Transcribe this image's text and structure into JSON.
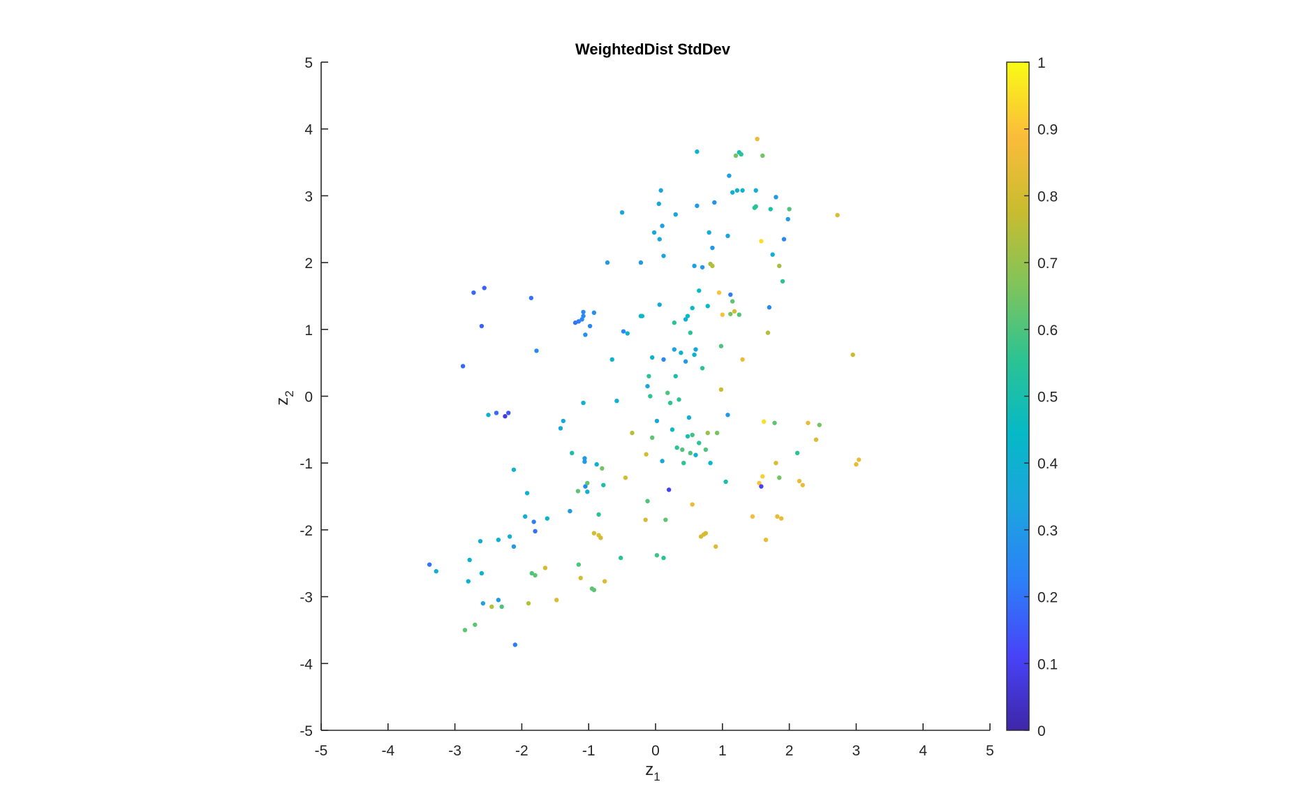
{
  "chart_data": {
    "type": "scatter",
    "title": "WeightedDist StdDev",
    "xlabel": {
      "base": "z",
      "sub": "1"
    },
    "ylabel": {
      "base": "z",
      "sub": "2"
    },
    "xlim": [
      -5,
      5
    ],
    "ylim": [
      -5,
      5
    ],
    "xticks": [
      "-5",
      "-4",
      "-3",
      "-2",
      "-1",
      "0",
      "1",
      "2",
      "3",
      "4",
      "5"
    ],
    "yticks": [
      "-5",
      "-4",
      "-3",
      "-2",
      "-1",
      "0",
      "1",
      "2",
      "3",
      "4",
      "5"
    ],
    "grid": false,
    "colorbar": {
      "colormap": "parula",
      "range": [
        0,
        1
      ],
      "ticks": [
        "0",
        "0.1",
        "0.2",
        "0.3",
        "0.4",
        "0.5",
        "0.6",
        "0.7",
        "0.8",
        "0.9",
        "1"
      ],
      "stops": [
        "#3e26a8",
        "#4743f8",
        "#2d7ff8",
        "#1ca4df",
        "#06b9c6",
        "#2cc393",
        "#80c45a",
        "#c9bc2f",
        "#fbbc3b",
        "#f9fb15"
      ]
    },
    "points": [
      [
        -3.38,
        -2.52,
        0.2
      ],
      [
        -3.28,
        -2.62,
        0.38
      ],
      [
        -2.88,
        0.45,
        0.18
      ],
      [
        -2.85,
        -3.5,
        0.62
      ],
      [
        -2.8,
        -2.77,
        0.4
      ],
      [
        -2.78,
        -2.45,
        0.42
      ],
      [
        -2.72,
        1.55,
        0.18
      ],
      [
        -2.7,
        -3.42,
        0.62
      ],
      [
        -2.62,
        -2.17,
        0.38
      ],
      [
        -2.6,
        1.05,
        0.17
      ],
      [
        -2.6,
        -2.65,
        0.42
      ],
      [
        -2.58,
        -3.1,
        0.32
      ],
      [
        -2.56,
        1.62,
        0.17
      ],
      [
        -2.5,
        -0.28,
        0.4
      ],
      [
        -2.45,
        -3.15,
        0.75
      ],
      [
        -2.38,
        -0.25,
        0.18
      ],
      [
        -2.35,
        -2.15,
        0.42
      ],
      [
        -2.35,
        -3.05,
        0.3
      ],
      [
        -2.3,
        -3.15,
        0.6
      ],
      [
        -2.25,
        -0.3,
        0.08
      ],
      [
        -2.2,
        -0.25,
        0.15
      ],
      [
        -2.18,
        -2.1,
        0.4
      ],
      [
        -2.12,
        -1.1,
        0.4
      ],
      [
        -2.12,
        -2.25,
        0.3
      ],
      [
        -2.1,
        -3.72,
        0.22
      ],
      [
        -1.95,
        -1.8,
        0.38
      ],
      [
        -1.92,
        -1.45,
        0.4
      ],
      [
        -1.9,
        -3.1,
        0.75
      ],
      [
        -1.86,
        1.47,
        0.2
      ],
      [
        -1.85,
        -2.65,
        0.6
      ],
      [
        -1.82,
        -1.88,
        0.22
      ],
      [
        -1.8,
        -2.02,
        0.2
      ],
      [
        -1.8,
        -2.68,
        0.62
      ],
      [
        -1.78,
        0.68,
        0.25
      ],
      [
        -1.62,
        -1.83,
        0.42
      ],
      [
        -1.65,
        -2.57,
        0.8
      ],
      [
        -1.48,
        -3.05,
        0.82
      ],
      [
        -1.42,
        -0.48,
        0.35
      ],
      [
        -1.38,
        -0.37,
        0.35
      ],
      [
        -1.28,
        -1.72,
        0.3
      ],
      [
        -1.25,
        -0.85,
        0.5
      ],
      [
        -1.2,
        1.1,
        0.2
      ],
      [
        -1.16,
        -1.42,
        0.62
      ],
      [
        -1.15,
        1.12,
        0.22
      ],
      [
        -1.15,
        -2.52,
        0.6
      ],
      [
        -1.12,
        -2.72,
        0.8
      ],
      [
        -1.1,
        1.15,
        0.25
      ],
      [
        -1.08,
        1.2,
        0.25
      ],
      [
        -1.08,
        1.26,
        0.25
      ],
      [
        -1.08,
        -0.1,
        0.4
      ],
      [
        -1.06,
        -0.93,
        0.3
      ],
      [
        -1.06,
        -0.98,
        0.3
      ],
      [
        -1.05,
        -1.35,
        0.25
      ],
      [
        -1.05,
        0.92,
        0.28
      ],
      [
        -1.02,
        -1.43,
        0.4
      ],
      [
        -1.02,
        -1.3,
        0.62
      ],
      [
        -0.98,
        1.05,
        0.25
      ],
      [
        -0.95,
        -2.88,
        0.62
      ],
      [
        -0.92,
        -2.9,
        0.62
      ],
      [
        -0.92,
        -2.05,
        0.8
      ],
      [
        -0.92,
        1.25,
        0.28
      ],
      [
        -0.88,
        -1.02,
        0.4
      ],
      [
        -0.85,
        -1.77,
        0.55
      ],
      [
        -0.85,
        -2.08,
        0.82
      ],
      [
        -0.82,
        -2.12,
        0.8
      ],
      [
        -0.8,
        -1.08,
        0.65
      ],
      [
        -0.78,
        -1.33,
        0.5
      ],
      [
        -0.76,
        -2.77,
        0.82
      ],
      [
        -0.72,
        2.0,
        0.3
      ],
      [
        -0.65,
        0.55,
        0.4
      ],
      [
        -0.58,
        -0.07,
        0.4
      ],
      [
        -0.52,
        -2.42,
        0.55
      ],
      [
        -0.5,
        2.75,
        0.35
      ],
      [
        -0.48,
        0.97,
        0.25
      ],
      [
        -0.45,
        -1.22,
        0.8
      ],
      [
        -0.42,
        0.94,
        0.4
      ],
      [
        -0.35,
        -0.55,
        0.75
      ],
      [
        -0.22,
        1.2,
        0.42
      ],
      [
        -0.2,
        1.2,
        0.45
      ],
      [
        -0.22,
        2.0,
        0.3
      ],
      [
        -0.15,
        -1.85,
        0.8
      ],
      [
        -0.14,
        -0.87,
        0.8
      ],
      [
        -0.12,
        -1.57,
        0.6
      ],
      [
        -0.12,
        0.15,
        0.35
      ],
      [
        -0.1,
        0.3,
        0.55
      ],
      [
        -0.08,
        0.0,
        0.55
      ],
      [
        -0.05,
        0.58,
        0.4
      ],
      [
        -0.05,
        -0.62,
        0.62
      ],
      [
        -0.02,
        2.45,
        0.35
      ],
      [
        0.02,
        -2.38,
        0.58
      ],
      [
        0.02,
        -0.37,
        0.35
      ],
      [
        0.05,
        2.88,
        0.35
      ],
      [
        0.06,
        1.37,
        0.35
      ],
      [
        0.06,
        2.35,
        0.35
      ],
      [
        0.08,
        3.08,
        0.35
      ],
      [
        0.1,
        2.55,
        0.32
      ],
      [
        0.1,
        -0.97,
        0.35
      ],
      [
        0.12,
        0.55,
        0.25
      ],
      [
        0.12,
        2.1,
        0.35
      ],
      [
        0.12,
        -2.42,
        0.55
      ],
      [
        0.15,
        -1.85,
        0.62
      ],
      [
        0.18,
        0.05,
        0.6
      ],
      [
        0.2,
        -1.4,
        0.1
      ],
      [
        0.22,
        -0.1,
        0.55
      ],
      [
        0.25,
        -0.5,
        0.45
      ],
      [
        0.28,
        1.1,
        0.55
      ],
      [
        0.28,
        0.7,
        0.32
      ],
      [
        0.3,
        2.72,
        0.35
      ],
      [
        0.3,
        0.3,
        0.5
      ],
      [
        0.32,
        -0.77,
        0.55
      ],
      [
        0.35,
        -0.05,
        0.55
      ],
      [
        0.38,
        0.65,
        0.4
      ],
      [
        0.4,
        -0.8,
        0.6
      ],
      [
        0.42,
        -1.0,
        0.55
      ],
      [
        0.45,
        0.52,
        0.3
      ],
      [
        0.45,
        1.15,
        0.42
      ],
      [
        0.48,
        1.2,
        0.45
      ],
      [
        0.48,
        -0.6,
        0.5
      ],
      [
        0.5,
        -0.32,
        0.38
      ],
      [
        0.52,
        -0.85,
        0.6
      ],
      [
        0.52,
        0.95,
        0.55
      ],
      [
        0.55,
        -0.58,
        0.58
      ],
      [
        0.55,
        1.32,
        0.45
      ],
      [
        0.55,
        -1.62,
        0.85
      ],
      [
        0.58,
        0.62,
        0.42
      ],
      [
        0.58,
        1.95,
        0.32
      ],
      [
        0.6,
        0.7,
        0.35
      ],
      [
        0.6,
        -0.88,
        0.4
      ],
      [
        0.62,
        2.85,
        0.3
      ],
      [
        0.62,
        3.66,
        0.42
      ],
      [
        0.65,
        1.58,
        0.45
      ],
      [
        0.65,
        -0.7,
        0.55
      ],
      [
        0.68,
        -2.1,
        0.8
      ],
      [
        0.7,
        0.42,
        0.55
      ],
      [
        0.7,
        1.93,
        0.3
      ],
      [
        0.72,
        -2.07,
        0.82
      ],
      [
        0.75,
        -2.05,
        0.8
      ],
      [
        0.75,
        -0.8,
        0.6
      ],
      [
        0.78,
        1.35,
        0.45
      ],
      [
        0.78,
        -0.55,
        0.7
      ],
      [
        0.8,
        2.45,
        0.38
      ],
      [
        0.82,
        1.98,
        0.72
      ],
      [
        0.82,
        -1.0,
        0.45
      ],
      [
        0.85,
        1.95,
        0.75
      ],
      [
        0.85,
        2.22,
        0.3
      ],
      [
        0.88,
        2.9,
        0.28
      ],
      [
        0.9,
        -2.25,
        0.82
      ],
      [
        0.92,
        -0.55,
        0.65
      ],
      [
        0.95,
        1.55,
        0.9
      ],
      [
        0.98,
        0.75,
        0.6
      ],
      [
        0.98,
        0.1,
        0.78
      ],
      [
        1.0,
        1.22,
        0.9
      ],
      [
        1.05,
        -1.28,
        0.5
      ],
      [
        1.08,
        -0.28,
        0.3
      ],
      [
        1.08,
        2.4,
        0.35
      ],
      [
        1.1,
        3.3,
        0.32
      ],
      [
        1.12,
        1.52,
        0.22
      ],
      [
        1.12,
        1.23,
        0.65
      ],
      [
        1.15,
        3.05,
        0.4
      ],
      [
        1.15,
        1.42,
        0.62
      ],
      [
        1.18,
        1.27,
        0.8
      ],
      [
        1.2,
        3.6,
        0.65
      ],
      [
        1.22,
        3.08,
        0.4
      ],
      [
        1.25,
        1.22,
        0.6
      ],
      [
        1.25,
        3.65,
        0.5
      ],
      [
        1.28,
        3.62,
        0.55
      ],
      [
        1.3,
        3.08,
        0.4
      ],
      [
        1.3,
        0.55,
        0.85
      ],
      [
        1.45,
        -1.8,
        0.88
      ],
      [
        1.48,
        2.82,
        0.55
      ],
      [
        1.5,
        2.84,
        0.55
      ],
      [
        1.5,
        3.08,
        0.38
      ],
      [
        1.52,
        3.85,
        0.85
      ],
      [
        1.55,
        -1.3,
        0.9
      ],
      [
        1.58,
        2.32,
        0.95
      ],
      [
        1.58,
        -1.35,
        0.1
      ],
      [
        1.6,
        3.6,
        0.65
      ],
      [
        1.6,
        -1.2,
        0.92
      ],
      [
        1.62,
        -0.38,
        0.95
      ],
      [
        1.65,
        -2.15,
        0.85
      ],
      [
        1.68,
        0.95,
        0.75
      ],
      [
        1.7,
        1.33,
        0.25
      ],
      [
        1.72,
        2.8,
        0.5
      ],
      [
        1.75,
        2.12,
        0.4
      ],
      [
        1.78,
        -0.4,
        0.62
      ],
      [
        1.8,
        2.98,
        0.3
      ],
      [
        1.8,
        -1.0,
        0.82
      ],
      [
        1.82,
        -1.8,
        0.85
      ],
      [
        1.85,
        1.95,
        0.72
      ],
      [
        1.85,
        -1.22,
        0.65
      ],
      [
        1.88,
        -1.83,
        0.85
      ],
      [
        1.9,
        1.72,
        0.55
      ],
      [
        1.92,
        2.35,
        0.25
      ],
      [
        1.98,
        2.65,
        0.3
      ],
      [
        2.0,
        2.8,
        0.6
      ],
      [
        2.12,
        -0.85,
        0.55
      ],
      [
        2.15,
        -1.27,
        0.85
      ],
      [
        2.2,
        -1.33,
        0.85
      ],
      [
        2.28,
        -0.4,
        0.85
      ],
      [
        2.4,
        -0.65,
        0.82
      ],
      [
        2.45,
        -0.43,
        0.65
      ],
      [
        2.72,
        2.71,
        0.82
      ],
      [
        2.95,
        0.62,
        0.78
      ],
      [
        3.0,
        -1.02,
        0.85
      ],
      [
        3.04,
        -0.95,
        0.85
      ]
    ]
  }
}
